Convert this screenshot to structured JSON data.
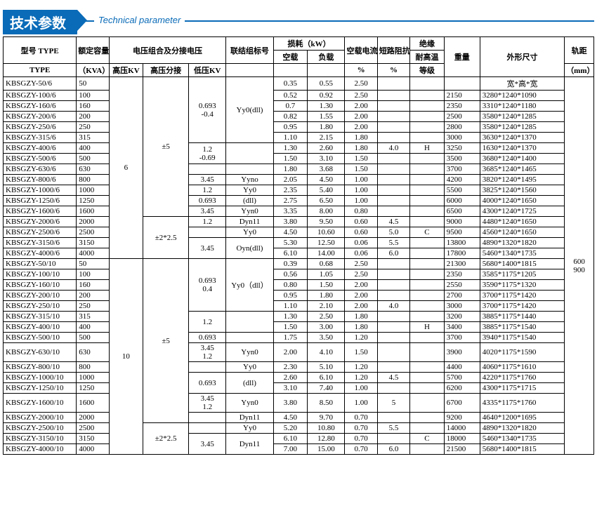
{
  "title_zh": "技术参数",
  "title_en": "Technical parameter",
  "headers": {
    "type1": "型号 TYPE",
    "type2": "TYPE",
    "capacity": "额定容量",
    "voltage_combo": "电压组合及分接电压",
    "conn": "联结组标号",
    "loss": "损耗（kW）",
    "noload_cur": "空载电流",
    "short_imp": "短路阻抗",
    "insul": "绝缘",
    "weight": "重量",
    "dims": "外形尺寸",
    "gauge": "轨距",
    "kva": "（KVA）",
    "hv": "高压KV",
    "tap": "高压分接",
    "lv": "低压KV",
    "noload": "空载",
    "load": "负载",
    "pct": "%",
    "heat": "耐高温",
    "grade": "等级",
    "mm": "（mm）",
    "wkw": "宽*高*宽"
  },
  "gauge_values": [
    "600",
    "900"
  ],
  "blocks": [
    {
      "hv": "6",
      "groups": [
        {
          "tap": "±5",
          "subs": [
            {
              "lv": "0.693\n-0.4",
              "conn": "Yy0(dll)",
              "rows": [
                {
                  "type": "KBSGZY-50/6",
                  "kva": "50",
                  "nl": "0.35",
                  "fl": "0.55",
                  "cur": "2.50",
                  "imp": "",
                  "cls": "",
                  "wt": "",
                  "dim": ""
                },
                {
                  "type": "KBSGZY-100/6",
                  "kva": "100",
                  "nl": "0.52",
                  "fl": "0.92",
                  "cur": "2.50",
                  "imp": "",
                  "cls": "",
                  "wt": "2150",
                  "dim": "3280*1240*1090"
                },
                {
                  "type": "KBSGZY-160/6",
                  "kva": "160",
                  "nl": "0.7",
                  "fl": "1.30",
                  "cur": "2.00",
                  "imp": "",
                  "cls": "",
                  "wt": "2350",
                  "dim": "3310*1240*1180"
                },
                {
                  "type": "KBSGZY-200/6",
                  "kva": "200",
                  "nl": "0.82",
                  "fl": "1.55",
                  "cur": "2.00",
                  "imp": "",
                  "cls": "",
                  "wt": "2500",
                  "dim": "3580*1240*1285"
                },
                {
                  "type": "KBSGZY-250/6",
                  "kva": "250",
                  "nl": "0.95",
                  "fl": "1.80",
                  "cur": "2.00",
                  "imp": "",
                  "cls": "",
                  "wt": "2800",
                  "dim": "3580*1240*1285"
                },
                {
                  "type": "KBSGZY-315/6",
                  "kva": "315",
                  "nl": "1.10",
                  "fl": "2.15",
                  "cur": "1.80",
                  "imp": "",
                  "cls": "",
                  "wt": "3000",
                  "dim": "3630*1240*1370"
                }
              ]
            },
            {
              "lv": "1.2\n-0.69",
              "conn": null,
              "rows": [
                {
                  "type": "KBSGZY-400/6",
                  "kva": "400",
                  "nl": "1.30",
                  "fl": "2.60",
                  "cur": "1.80",
                  "imp": "4.0",
                  "cls": "H",
                  "wt": "3250",
                  "dim": "1630*1240*1370"
                },
                {
                  "type": "KBSGZY-500/6",
                  "kva": "500",
                  "nl": "1.50",
                  "fl": "3.10",
                  "cur": "1.50",
                  "imp": "",
                  "cls": "",
                  "wt": "3500",
                  "dim": "3680*1240*1400"
                }
              ]
            },
            {
              "lv": "",
              "conn": null,
              "rows": [
                {
                  "type": "KBSGZY-630/6",
                  "kva": "630",
                  "nl": "1.80",
                  "fl": "3.68",
                  "cur": "1.50",
                  "imp": "",
                  "cls": "",
                  "wt": "3700",
                  "dim": "3685*1240*1465"
                }
              ]
            },
            {
              "lv": "3.45",
              "conn": "Yyno",
              "rows": [
                {
                  "type": "KBSGZY-800/6",
                  "kva": "800",
                  "nl": "2.05",
                  "fl": "4.50",
                  "cur": "1.00",
                  "imp": "",
                  "cls": "",
                  "wt": "4200",
                  "dim": "3820*1240*1495"
                }
              ]
            },
            {
              "lv": "1.2",
              "conn": "Yy0",
              "rows": [
                {
                  "type": "KBSGZY-1000/6",
                  "kva": "1000",
                  "nl": "2.35",
                  "fl": "5.40",
                  "cur": "1.00",
                  "imp": "",
                  "cls": "",
                  "wt": "5500",
                  "dim": "3825*1240*1560"
                }
              ]
            },
            {
              "lv": "0.693",
              "conn": "(dll)",
              "rows": [
                {
                  "type": "KBSGZY-1250/6",
                  "kva": "1250",
                  "nl": "2.75",
                  "fl": "6.50",
                  "cur": "1.00",
                  "imp": "",
                  "cls": "",
                  "wt": "6000",
                  "dim": "4000*1240*1650"
                }
              ]
            },
            {
              "lv": "3.45",
              "conn": "Yyn0",
              "rows": [
                {
                  "type": "KBSGZY-1600/6",
                  "kva": "1600",
                  "nl": "3.35",
                  "fl": "8.00",
                  "cur": "0.80",
                  "imp": "",
                  "cls": "",
                  "wt": "6500",
                  "dim": "4300*1240*1725"
                }
              ]
            }
          ]
        },
        {
          "tap": "±2*2.5",
          "subs": [
            {
              "lv": "1.2",
              "conn": "Dyn11",
              "rows": [
                {
                  "type": "KBSGZY-2000/6",
                  "kva": "2000",
                  "nl": "3.80",
                  "fl": "9.50",
                  "cur": "0.60",
                  "imp": "4.5",
                  "cls": "",
                  "wt": "9000",
                  "dim": "4480*1240*1650"
                }
              ]
            },
            {
              "lv": "",
              "conn": "Yy0",
              "rows": [
                {
                  "type": "KBSGZY-2500/6",
                  "kva": "2500",
                  "nl": "4.50",
                  "fl": "10.60",
                  "cur": "0.60",
                  "imp": "5.0",
                  "cls": "C",
                  "wt": "9500",
                  "dim": "4560*1240*1650"
                }
              ]
            },
            {
              "lv": "3.45",
              "conn": "Oyn(dll)",
              "rows": [
                {
                  "type": "KBSGZY-3150/6",
                  "kva": "3150",
                  "nl": "5.30",
                  "fl": "12.50",
                  "cur": "0.06",
                  "imp": "5.5",
                  "cls": "",
                  "wt": "13800",
                  "dim": "4890*1320*1820"
                },
                {
                  "type": "KBSGZY-4000/6",
                  "kva": "4000",
                  "nl": "6.10",
                  "fl": "14.00",
                  "cur": "0.06",
                  "imp": "6.0",
                  "cls": "",
                  "wt": "17800",
                  "dim": "5460*1340*1735"
                }
              ]
            }
          ]
        }
      ]
    },
    {
      "hv": "10",
      "groups": [
        {
          "tap": "±5",
          "subs": [
            {
              "lv": "0.693\n0.4",
              "conn": "Yy0（dll）",
              "rows": [
                {
                  "type": "KBSGZY-50/10",
                  "kva": "50",
                  "nl": "0.39",
                  "fl": "0.68",
                  "cur": "2.50",
                  "imp": "",
                  "cls": "",
                  "wt": "21300",
                  "dim": "5680*1400*1815"
                },
                {
                  "type": "KBSGZY-100/10",
                  "kva": "100",
                  "nl": "0.56",
                  "fl": "1.05",
                  "cur": "2.50",
                  "imp": "",
                  "cls": "",
                  "wt": "2350",
                  "dim": "3585*1175*1205"
                },
                {
                  "type": "KBSGZY-160/10",
                  "kva": "160",
                  "nl": "0.80",
                  "fl": "1.50",
                  "cur": "2.00",
                  "imp": "",
                  "cls": "",
                  "wt": "2550",
                  "dim": "3590*1175*1320"
                },
                {
                  "type": "KBSGZY-200/10",
                  "kva": "200",
                  "nl": "0.95",
                  "fl": "1.80",
                  "cur": "2.00",
                  "imp": "",
                  "cls": "",
                  "wt": "2700",
                  "dim": "3700*1175*1420"
                },
                {
                  "type": "KBSGZY-250/10",
                  "kva": "250",
                  "nl": "1.10",
                  "fl": "2.10",
                  "cur": "2.00",
                  "imp": "4.0",
                  "cls": "",
                  "wt": "3000",
                  "dim": "3700*1175*1420"
                }
              ]
            },
            {
              "lv": "1.2",
              "conn": null,
              "rows": [
                {
                  "type": "KBSGZY-315/10",
                  "kva": "315",
                  "nl": "1.30",
                  "fl": "2.50",
                  "cur": "1.80",
                  "imp": "",
                  "cls": "",
                  "wt": "3200",
                  "dim": "3885*1175*1440"
                },
                {
                  "type": "KBSGZY-400/10",
                  "kva": "400",
                  "nl": "1.50",
                  "fl": "3.00",
                  "cur": "1.80",
                  "imp": "",
                  "cls": "H",
                  "wt": "3400",
                  "dim": "3885*1175*1540"
                }
              ]
            },
            {
              "lv": "0.693",
              "conn": null,
              "rows": [
                {
                  "type": "KBSGZY-500/10",
                  "kva": "500",
                  "nl": "1.75",
                  "fl": "3.50",
                  "cur": "1.20",
                  "imp": "",
                  "cls": "",
                  "wt": "3700",
                  "dim": "3940*1175*1540"
                }
              ]
            },
            {
              "lv": "3.45\n1.2",
              "conn": "Yyn0",
              "rows": [
                {
                  "type": "KBSGZY-630/10",
                  "kva": "630",
                  "nl": "2.00",
                  "fl": "4.10",
                  "cur": "1.50",
                  "imp": "",
                  "cls": "",
                  "wt": "3900",
                  "dim": "4020*1175*1590"
                }
              ]
            },
            {
              "lv": "",
              "conn": "Yy0",
              "rows": [
                {
                  "type": "KBSGZY-800/10",
                  "kva": "800",
                  "nl": "2.30",
                  "fl": "5.10",
                  "cur": "1.20",
                  "imp": "",
                  "cls": "",
                  "wt": "4400",
                  "dim": "4060*1175*1610"
                }
              ]
            },
            {
              "lv": "0.693",
              "conn": "(dll)",
              "rows": [
                {
                  "type": "KBSGZY-1000/10",
                  "kva": "1000",
                  "nl": "2.60",
                  "fl": "6.10",
                  "cur": "1.20",
                  "imp": "4.5",
                  "cls": "",
                  "wt": "5700",
                  "dim": "4220*1175*1760"
                },
                {
                  "type": "KBSGZY-1250/10",
                  "kva": "1250",
                  "nl": "3.10",
                  "fl": "7.40",
                  "cur": "1.00",
                  "imp": "",
                  "cls": "",
                  "wt": "6200",
                  "dim": "4300*1175*1715"
                }
              ]
            },
            {
              "lv": "3.45\n1.2",
              "conn": "Yyn0",
              "rows": [
                {
                  "type": "KBSGZY-1600/10",
                  "kva": "1600",
                  "nl": "3.80",
                  "fl": "8.50",
                  "cur": "1.00",
                  "imp": "5",
                  "cls": "",
                  "wt": "6700",
                  "dim": "4335*1175*1760"
                }
              ]
            },
            {
              "lv": "",
              "conn": "Dyn11",
              "rows": [
                {
                  "type": "KBSGZY-2000/10",
                  "kva": "2000",
                  "nl": "4.50",
                  "fl": "9.70",
                  "cur": "0.70",
                  "imp": "",
                  "cls": "",
                  "wt": "9200",
                  "dim": "4640*1200*1695"
                }
              ]
            }
          ]
        },
        {
          "tap": "±2*2.5",
          "subs": [
            {
              "lv": "",
              "conn": "Yy0",
              "rows": [
                {
                  "type": "KBSGZY-2500/10",
                  "kva": "2500",
                  "nl": "5.20",
                  "fl": "10.80",
                  "cur": "0.70",
                  "imp": "5.5",
                  "cls": "",
                  "wt": "14000",
                  "dim": "4890*1320*1820"
                }
              ]
            },
            {
              "lv": "3.45",
              "conn": "Dyn11",
              "rows": [
                {
                  "type": "KBSGZY-3150/10",
                  "kva": "3150",
                  "nl": "6.10",
                  "fl": "12.80",
                  "cur": "0.70",
                  "imp": "",
                  "cls": "C",
                  "wt": "18000",
                  "dim": "5460*1340*1735"
                },
                {
                  "type": "KBSGZY-4000/10",
                  "kva": "4000",
                  "nl": "7.00",
                  "fl": "15.00",
                  "cur": "0.70",
                  "imp": "6.0",
                  "cls": "",
                  "wt": "21500",
                  "dim": "5680*1400*1815"
                }
              ]
            }
          ]
        }
      ]
    }
  ]
}
